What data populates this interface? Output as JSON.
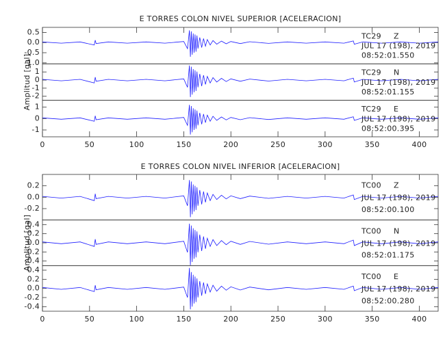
{
  "chart_data": [
    {
      "type": "line",
      "title": "E TORRES COLON NIVEL SUPERIOR [ACELERACION]",
      "ylabel": "Amplitud [gal]",
      "color": "#1a1aff",
      "xlim": [
        0,
        420
      ],
      "xticks": [
        0,
        50,
        100,
        150,
        200,
        250,
        300,
        350,
        400
      ],
      "x": [
        0,
        20,
        40,
        55,
        56,
        57,
        70,
        90,
        110,
        130,
        150,
        154,
        156,
        157,
        158,
        159,
        160,
        161,
        162,
        163,
        164,
        165,
        167,
        169,
        171,
        173,
        175,
        178,
        181,
        185,
        190,
        195,
        200,
        210,
        220,
        240,
        260,
        280,
        300,
        320,
        330,
        331,
        340,
        360,
        380,
        400,
        420
      ],
      "panels": [
        {
          "station": "TC29",
          "component": "Z",
          "date": "JUL 17 (198), 2019",
          "time": "08:52:01.550",
          "ylim": [
            -1.05,
            0.75
          ],
          "yticks": [
            0.5,
            {
              "value": 0,
              "label": "0.0"
            },
            -0.5,
            {
              "value": -1,
              "label": "-1.0"
            }
          ],
          "values": [
            0.03,
            -0.03,
            0.03,
            -0.12,
            0.12,
            -0.05,
            0.03,
            -0.03,
            0.03,
            -0.03,
            0.05,
            -0.3,
            0.6,
            -0.7,
            0.55,
            -0.6,
            0.45,
            -0.5,
            0.4,
            -0.45,
            0.35,
            -0.3,
            0.25,
            -0.25,
            0.2,
            -0.18,
            0.15,
            -0.12,
            0.1,
            -0.08,
            0.07,
            -0.06,
            0.05,
            -0.05,
            0.04,
            -0.04,
            0.03,
            -0.03,
            0.03,
            -0.03,
            0.08,
            -0.08,
            0.03,
            -0.03,
            0.03,
            -0.03,
            0.03
          ]
        },
        {
          "station": "TC29",
          "component": "N",
          "date": "JUL 17 (198), 2019",
          "time": "08:52:01.155",
          "ylim": [
            -2.5,
            2
          ],
          "yticks": [
            1,
            0,
            -1,
            -2
          ],
          "values": [
            0.09,
            -0.09,
            0.09,
            -0.36,
            0.36,
            -0.15,
            0.09,
            -0.09,
            0.09,
            -0.09,
            0.15,
            -0.9,
            1.8,
            -2.1,
            1.65,
            -1.8,
            1.35,
            -1.5,
            1.2,
            -1.35,
            1.05,
            -0.9,
            0.75,
            -0.75,
            0.6,
            -0.54,
            0.45,
            -0.36,
            0.3,
            -0.24,
            0.21,
            -0.18,
            0.15,
            -0.15,
            0.12,
            -0.12,
            0.09,
            -0.09,
            0.09,
            -0.09,
            0.24,
            -0.24,
            0.09,
            -0.09,
            0.09,
            -0.09,
            0.09
          ]
        },
        {
          "station": "TC29",
          "component": "E",
          "date": "JUL 17 (198), 2019",
          "time": "08:52:00.395",
          "ylim": [
            -1.6,
            1.6
          ],
          "yticks": [
            1,
            0,
            -1
          ],
          "values": [
            0.06,
            -0.06,
            0.06,
            -0.24,
            0.24,
            -0.1,
            0.06,
            -0.06,
            0.06,
            -0.06,
            0.1,
            -0.6,
            1.2,
            -1.4,
            1.1,
            -1.2,
            0.9,
            -1,
            0.8,
            -0.9,
            0.7,
            -0.6,
            0.5,
            -0.5,
            0.4,
            -0.36,
            0.3,
            -0.24,
            0.2,
            -0.16,
            0.14,
            -0.12,
            0.1,
            -0.1,
            0.08,
            -0.08,
            0.06,
            -0.06,
            0.06,
            -0.06,
            0.16,
            -0.16,
            0.06,
            -0.06,
            0.06,
            -0.06,
            0.06
          ]
        }
      ]
    },
    {
      "type": "line",
      "title": "E TORRES COLON NIVEL INFERIOR [ACELERACION]",
      "ylabel": "Amplitud [gal]",
      "color": "#1a1aff",
      "xlim": [
        0,
        420
      ],
      "xticks": [
        0,
        50,
        100,
        150,
        200,
        250,
        300,
        350,
        400
      ],
      "x": [
        0,
        20,
        40,
        55,
        56,
        57,
        70,
        90,
        110,
        130,
        150,
        154,
        156,
        157,
        158,
        159,
        160,
        161,
        162,
        163,
        164,
        165,
        167,
        169,
        171,
        173,
        175,
        178,
        181,
        185,
        190,
        195,
        200,
        210,
        220,
        240,
        260,
        280,
        300,
        320,
        330,
        331,
        340,
        360,
        380,
        400,
        420
      ],
      "panels": [
        {
          "station": "TC00",
          "component": "Z",
          "date": "JUL 17 (198), 2019",
          "time": "08:52:00.100",
          "ylim": [
            -0.4,
            0.4
          ],
          "yticks": [
            0.2,
            {
              "value": 0,
              "label": "0.0"
            },
            -0.2
          ],
          "values": [
            0.015,
            -0.015,
            0.015,
            -0.06,
            0.06,
            -0.025,
            0.015,
            -0.015,
            0.015,
            -0.015,
            0.025,
            -0.15,
            0.3,
            -0.35,
            0.275,
            -0.3,
            0.225,
            -0.25,
            0.2,
            -0.225,
            0.175,
            -0.15,
            0.125,
            -0.125,
            0.1,
            -0.09,
            0.075,
            -0.06,
            0.05,
            -0.04,
            0.035,
            -0.03,
            0.025,
            -0.025,
            0.02,
            -0.02,
            0.015,
            -0.015,
            0.015,
            -0.015,
            0.04,
            -0.04,
            0.015,
            -0.015,
            0.015,
            -0.015,
            0.015
          ]
        },
        {
          "station": "TC00",
          "component": "N",
          "date": "JUL 17 (198), 2019",
          "time": "08:52:01.175",
          "ylim": [
            -0.5,
            0.5
          ],
          "yticks": [
            0.4,
            0.2,
            {
              "value": 0,
              "label": "0.0"
            },
            -0.2,
            -0.4
          ],
          "values": [
            0.02,
            -0.02,
            0.02,
            -0.08,
            0.08,
            -0.035,
            0.02,
            -0.02,
            0.02,
            -0.02,
            0.035,
            -0.21,
            0.42,
            -0.49,
            0.38,
            -0.42,
            0.32,
            -0.35,
            0.28,
            -0.32,
            0.25,
            -0.21,
            0.18,
            -0.18,
            0.14,
            -0.13,
            0.1,
            -0.08,
            0.07,
            -0.06,
            0.05,
            -0.04,
            0.035,
            -0.035,
            0.03,
            -0.03,
            0.02,
            -0.02,
            0.02,
            -0.02,
            0.06,
            -0.06,
            0.02,
            -0.02,
            0.02,
            -0.02,
            0.02
          ]
        },
        {
          "station": "TC00",
          "component": "E",
          "date": "JUL 17 (198), 2019",
          "time": "08:52:00.280",
          "ylim": [
            -0.5,
            0.5
          ],
          "yticks": [
            0.4,
            0.2,
            {
              "value": 0,
              "label": "0.0"
            },
            -0.2,
            -0.4
          ],
          "values": [
            0.02,
            -0.02,
            0.02,
            -0.07,
            0.07,
            -0.03,
            0.02,
            -0.02,
            0.02,
            -0.02,
            0.03,
            -0.2,
            0.45,
            -0.46,
            0.36,
            -0.4,
            0.3,
            -0.33,
            0.26,
            -0.3,
            0.22,
            -0.2,
            0.16,
            -0.16,
            0.13,
            -0.12,
            0.1,
            -0.08,
            0.07,
            -0.06,
            0.05,
            -0.04,
            0.035,
            -0.035,
            0.03,
            -0.03,
            0.02,
            -0.02,
            0.02,
            -0.02,
            0.05,
            -0.05,
            0.02,
            -0.02,
            0.02,
            -0.02,
            0.02
          ]
        }
      ]
    }
  ]
}
